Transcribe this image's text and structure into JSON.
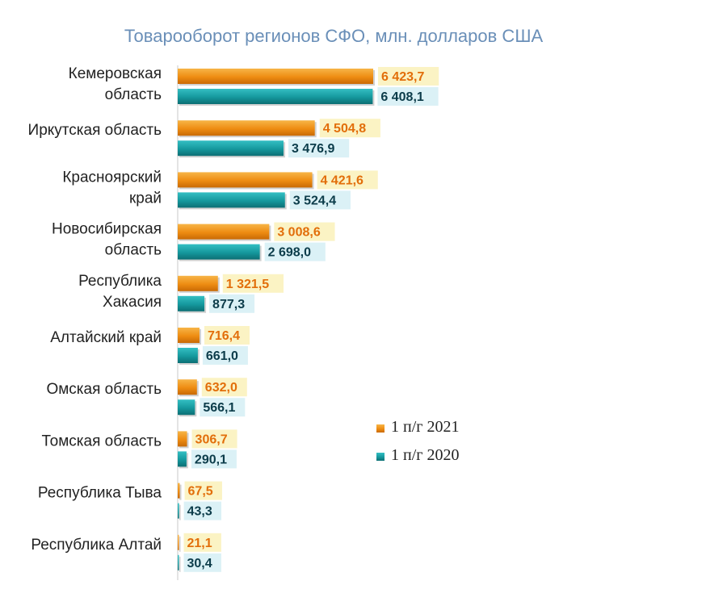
{
  "chart_data": {
    "type": "bar",
    "orientation": "horizontal",
    "title": "Товарооборот регионов СФО, млн. долларов США",
    "categories": [
      [
        "Кемеровская",
        "область"
      ],
      [
        "Иркутская область"
      ],
      [
        "Красноярский",
        "край"
      ],
      [
        "Новосибирская",
        "область"
      ],
      [
        "Республика",
        "Хакасия"
      ],
      [
        "Алтайский край"
      ],
      [
        "Омская область"
      ],
      [
        "Томская область"
      ],
      [
        "Республика Тыва"
      ],
      [
        "Республика Алтай"
      ]
    ],
    "series": [
      {
        "name": "1 п/г 2021",
        "color": "#f39a1e",
        "values": [
          6423.7,
          4504.8,
          4421.6,
          3008.6,
          1321.5,
          716.4,
          632.0,
          306.7,
          67.5,
          21.1
        ],
        "labels": [
          "6 423,7",
          "4 504,8",
          "4 421,6",
          "3 008,6",
          "1 321,5",
          "716,4",
          "632,0",
          "306,7",
          "67,5",
          "21,1"
        ]
      },
      {
        "name": "1 п/г 2020",
        "color": "#1aa3a8",
        "values": [
          6408.1,
          3476.9,
          3524.4,
          2698.0,
          877.3,
          661.0,
          566.1,
          290.1,
          43.3,
          30.4
        ],
        "labels": [
          "6 408,1",
          "3 476,9",
          "3 524,4",
          "2 698,0",
          "877,3",
          "661,0",
          "566,1",
          "290,1",
          "43,3",
          "30,4"
        ]
      }
    ],
    "xlim": [
      0,
      6423.7
    ],
    "grid": false,
    "legend": "center-right"
  }
}
